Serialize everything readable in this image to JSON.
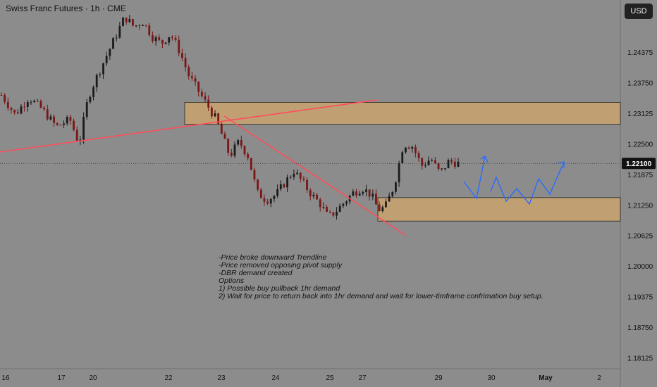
{
  "header": {
    "title": "Swiss Franc Futures · 1h · CME",
    "currency_button": "USD"
  },
  "colors": {
    "background": "#8c8c8c",
    "axis_bg": "#8c8c8c",
    "up": "#1b1b1b",
    "down": "#7a1616",
    "zone_fill": "#c9a36e",
    "trendline": "#ff4d5a",
    "projection": "#2a6bff",
    "price_label_bg": "#111111"
  },
  "annotation": {
    "lines": [
      "-Price broke downward Trendline",
      "-Price removed opposing pivot supply",
      "-DBR demand created",
      "",
      "Options",
      "1) Possible buy pullback 1hr demand",
      "2) Wait for price to return back into 1hr demand and wait for lower-timframe confrimation buy setup."
    ]
  },
  "chart_data": {
    "type": "candlestick",
    "title": "Swiss Franc Futures · 1h · CME",
    "ylim": [
      1.179,
      1.254
    ],
    "y_ticks": [
      {
        "value": 1.24375,
        "label": "1.24375"
      },
      {
        "value": 1.2375,
        "label": "1.23750"
      },
      {
        "value": 1.23125,
        "label": "1.23125"
      },
      {
        "value": 1.225,
        "label": "1.22500"
      },
      {
        "value": 1.21875,
        "label": "1.21875"
      },
      {
        "value": 1.2125,
        "label": "1.21250"
      },
      {
        "value": 1.20625,
        "label": "1.20625"
      },
      {
        "value": 1.2,
        "label": "1.20000"
      },
      {
        "value": 1.19375,
        "label": "1.19375"
      },
      {
        "value": 1.1875,
        "label": "1.18750"
      },
      {
        "value": 1.18125,
        "label": "1.18125"
      }
    ],
    "x_ticks": [
      "16",
      "17",
      "20",
      "22",
      "23",
      "24",
      "25",
      "27",
      "29",
      "30",
      "May",
      "2"
    ],
    "last_price": {
      "value": 1.221,
      "label": "1.22100"
    },
    "supply_zone": [
      1.229,
      1.2335
    ],
    "demand_zone": [
      1.2092,
      1.214
    ],
    "close_path": [
      [
        0,
        1.235
      ],
      [
        3,
        1.231
      ],
      [
        6,
        1.2345
      ],
      [
        9,
        1.232
      ],
      [
        12,
        1.2285
      ],
      [
        15,
        1.23
      ],
      [
        17,
        1.225
      ],
      [
        19,
        1.2345
      ],
      [
        21,
        1.239
      ],
      [
        23,
        1.243
      ],
      [
        25,
        1.247
      ],
      [
        27,
        1.251
      ],
      [
        29,
        1.249
      ],
      [
        31,
        1.25
      ],
      [
        33,
        1.247
      ],
      [
        35,
        1.2455
      ],
      [
        37,
        1.2475
      ],
      [
        39,
        1.244
      ],
      [
        41,
        1.239
      ],
      [
        43,
        1.236
      ],
      [
        45,
        1.233
      ],
      [
        47,
        1.23
      ],
      [
        48.6,
        1.226
      ],
      [
        50,
        1.2225
      ],
      [
        52,
        1.2255
      ],
      [
        54,
        1.2225
      ],
      [
        56,
        1.215
      ],
      [
        58,
        1.2135
      ],
      [
        60,
        1.2145
      ],
      [
        62,
        1.217
      ],
      [
        64,
        1.2195
      ],
      [
        66,
        1.217
      ],
      [
        68,
        1.2145
      ],
      [
        70,
        1.2125
      ],
      [
        71.5,
        1.21
      ],
      [
        73,
        1.211
      ],
      [
        75,
        1.213
      ],
      [
        77,
        1.215
      ],
      [
        79,
        1.216
      ],
      [
        81,
        1.2145
      ],
      [
        82.5,
        1.2115
      ],
      [
        84,
        1.212
      ],
      [
        86,
        1.2165
      ],
      [
        88,
        1.225
      ],
      [
        90,
        1.2245
      ],
      [
        92,
        1.2205
      ],
      [
        94,
        1.222
      ],
      [
        96,
        1.219
      ],
      [
        98,
        1.2215
      ],
      [
        100,
        1.221
      ]
    ]
  }
}
